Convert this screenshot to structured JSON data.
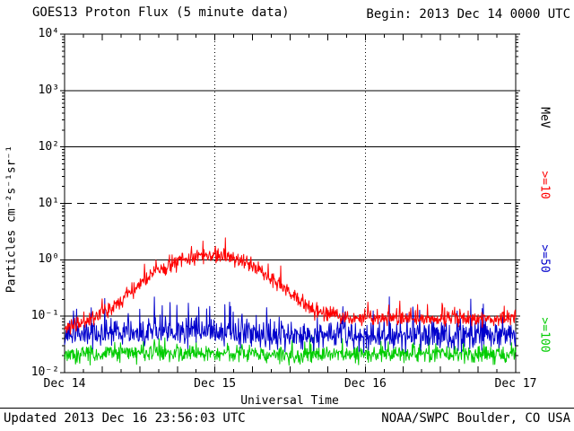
{
  "chart_data": {
    "type": "line",
    "title": "GOES13 Proton Flux (5 minute data)",
    "begin_label": "Begin: 2013 Dec 14 0000 UTC",
    "xlabel": "Universal Time",
    "ylabel": "Particles cm⁻²s⁻¹sr⁻¹",
    "right_axis_unit": "MeV",
    "x_categories": [
      "Dec 14",
      "Dec 15",
      "Dec 16",
      "Dec 17"
    ],
    "x_range_days": [
      0,
      3
    ],
    "samples_per_day": 288,
    "ylog_range": [
      -2,
      4
    ],
    "y_tick_labels": [
      "10⁻²",
      "10⁻¹",
      "10⁰",
      "10¹",
      "10²",
      "10³",
      "10⁴"
    ],
    "grid": {
      "solid_hlines": [
        1000,
        100,
        1,
        0.1
      ],
      "dashed_hlines": [
        10
      ],
      "dotted_vlines_days": [
        1,
        2
      ]
    },
    "axis_color": "#000000",
    "series": [
      {
        "name": ">=10",
        "color": "#ff0000",
        "trend": [
          [
            0,
            0.06
          ],
          [
            0.1,
            0.075
          ],
          [
            0.2,
            0.1
          ],
          [
            0.3,
            0.14
          ],
          [
            0.4,
            0.22
          ],
          [
            0.5,
            0.38
          ],
          [
            0.6,
            0.6
          ],
          [
            0.7,
            0.8
          ],
          [
            0.8,
            1.0
          ],
          [
            0.9,
            1.15
          ],
          [
            1.0,
            1.25
          ],
          [
            1.08,
            1.15
          ],
          [
            1.15,
            1.0
          ],
          [
            1.25,
            0.78
          ],
          [
            1.35,
            0.52
          ],
          [
            1.45,
            0.33
          ],
          [
            1.55,
            0.2
          ],
          [
            1.65,
            0.13
          ],
          [
            1.75,
            0.105
          ],
          [
            1.9,
            0.095
          ],
          [
            2.2,
            0.09
          ],
          [
            2.6,
            0.092
          ],
          [
            3.0,
            0.09
          ]
        ],
        "jitter_dex": 0.1,
        "spike_prob": 0.05,
        "spike_dex": 0.28,
        "seed": 11
      },
      {
        "name": ">=50",
        "color": "#0000cc",
        "trend": [
          [
            0,
            0.045
          ],
          [
            0.5,
            0.05
          ],
          [
            1.0,
            0.052
          ],
          [
            1.5,
            0.046
          ],
          [
            2.0,
            0.043
          ],
          [
            2.5,
            0.044
          ],
          [
            3.0,
            0.045
          ]
        ],
        "jitter_dex": 0.17,
        "spike_prob": 0.1,
        "spike_dex": 0.5,
        "seed": 23
      },
      {
        "name": ">=100",
        "color": "#00cc00",
        "trend": [
          [
            0,
            0.021
          ],
          [
            0.75,
            0.022
          ],
          [
            1.5,
            0.021
          ],
          [
            2.25,
            0.021
          ],
          [
            3.0,
            0.021
          ]
        ],
        "jitter_dex": 0.11,
        "spike_prob": 0.06,
        "spike_dex": 0.26,
        "seed": 37
      }
    ]
  },
  "footer": {
    "updated": "Updated 2013 Dec 16 23:56:03 UTC",
    "source": "NOAA/SWPC Boulder, CO USA"
  }
}
